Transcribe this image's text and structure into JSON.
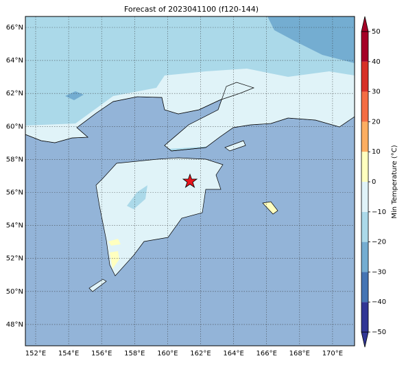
{
  "title": "Forecast of 2023041100 (f120-144)",
  "lat_labels": [
    "66°N",
    "64°N",
    "62°N",
    "60°N",
    "58°N",
    "56°N",
    "54°N",
    "52°N",
    "50°N",
    "48°N"
  ],
  "lon_labels": [
    "152°E",
    "154°E",
    "156°E",
    "158°E",
    "160°E",
    "162°E",
    "164°E",
    "166°E",
    "168°E",
    "170°E"
  ],
  "colorbar": {
    "label": "Min Temperature (°C)",
    "range": [
      -50,
      50
    ],
    "ticks": [
      {
        "value": -50,
        "label": "−50"
      },
      {
        "value": -40,
        "label": "−40"
      },
      {
        "value": -30,
        "label": "−30"
      },
      {
        "value": -20,
        "label": "−20"
      },
      {
        "value": -10,
        "label": "−10"
      },
      0,
      10,
      20,
      30,
      40,
      50
    ],
    "colors": [
      "#313695",
      "#4575b4",
      "#74add1",
      "#abd9e9",
      "#e0f3f8",
      "#ffffbf",
      "#fdae61",
      "#f46d43",
      "#d73027",
      "#a50026"
    ]
  }
}
